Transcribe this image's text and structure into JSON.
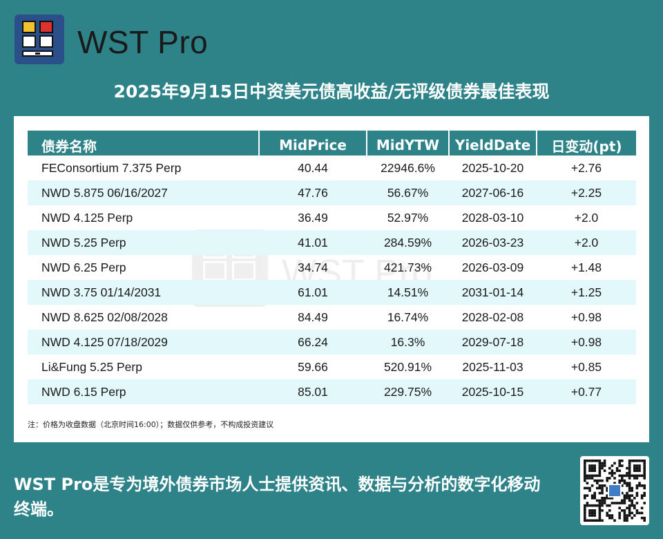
{
  "brand": {
    "name": "WST Pro"
  },
  "title": "2025年9月15日中资美元债高收益/无评级债券最佳表现",
  "watermark": "WST Pro",
  "table": {
    "headers": [
      "债券名称",
      "MidPrice",
      "MidYTW",
      "YieldDate",
      "日变动(pt)"
    ],
    "rows": [
      [
        "FEConsortium 7.375 Perp",
        "40.44",
        "22946.6%",
        "2025-10-20",
        "+2.76"
      ],
      [
        "NWD 5.875 06/16/2027",
        "47.76",
        "56.67%",
        "2027-06-16",
        "+2.25"
      ],
      [
        "NWD 4.125 Perp",
        "36.49",
        "52.97%",
        "2028-03-10",
        "+2.0"
      ],
      [
        "NWD 5.25 Perp",
        "41.01",
        "284.59%",
        "2026-03-23",
        "+2.0"
      ],
      [
        "NWD 6.25 Perp",
        "34.74",
        "421.73%",
        "2026-03-09",
        "+1.48"
      ],
      [
        "NWD 3.75 01/14/2031",
        "61.01",
        "14.51%",
        "2031-01-14",
        "+1.25"
      ],
      [
        "NWD 8.625 02/08/2028",
        "84.49",
        "16.74%",
        "2028-02-08",
        "+0.98"
      ],
      [
        "NWD 4.125 07/18/2029",
        "66.24",
        "16.3%",
        "2029-07-18",
        "+0.98"
      ],
      [
        "Li&Fung 5.25 Perp",
        "59.66",
        "520.91%",
        "2025-11-03",
        "+0.85"
      ],
      [
        "NWD 6.15 Perp",
        "85.01",
        "229.75%",
        "2025-10-15",
        "+0.77"
      ]
    ]
  },
  "note": "注：价格为收盘数据（北京时间16:00）；数据仅供参考，不构成投资建议",
  "footer": "WST Pro是专为境外债券市场人士提供资讯、数据与分析的数字化移动终端。",
  "colors": {
    "background": "#2e8389",
    "header": "#2e8389",
    "stripe": "#e3f8fa",
    "logo": "#2b4f88"
  },
  "icons": {
    "logo": "wst-logo-icon",
    "qr": "qr-code-icon"
  }
}
